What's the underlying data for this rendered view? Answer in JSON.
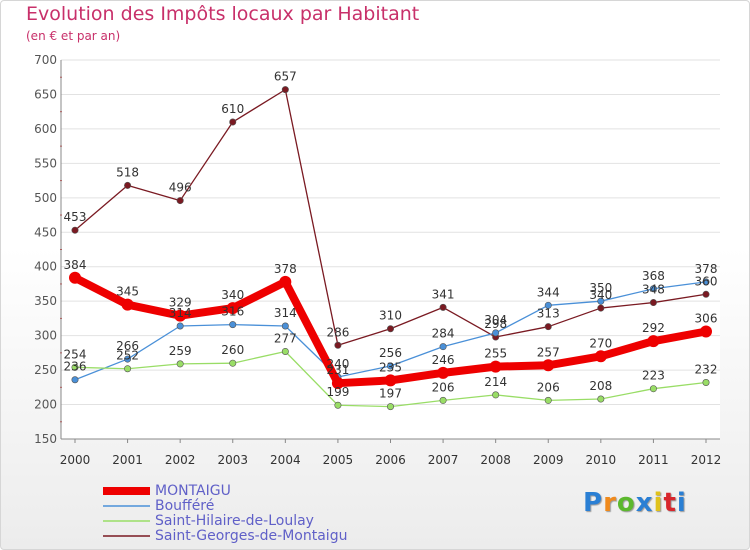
{
  "chart_data": {
    "type": "line",
    "title": "Evolution des Impôts locaux par Habitant",
    "subtitle": "(en € et par an)",
    "xlabel": "",
    "ylabel": "",
    "categories": [
      "2000",
      "2001",
      "2002",
      "2003",
      "2004",
      "2005",
      "2006",
      "2007",
      "2008",
      "2009",
      "2010",
      "2011",
      "2012"
    ],
    "yticks": [
      "150",
      "200",
      "250",
      "300",
      "350",
      "400",
      "450",
      "500",
      "550",
      "600",
      "650",
      "700"
    ],
    "ylim": [
      150,
      700
    ],
    "grid": "horizontal",
    "legend_position": "bottom-left",
    "series": [
      {
        "name": "MONTAIGU",
        "color": "#ee0000",
        "values": [
          384,
          345,
          329,
          340,
          378,
          231,
          235,
          246,
          255,
          257,
          270,
          292,
          306
        ],
        "labels": [
          "384",
          "345",
          "329",
          "340",
          "378",
          "231",
          "235",
          "246",
          "255",
          "257",
          "270",
          "292",
          "306"
        ]
      },
      {
        "name": "Boufféré",
        "color": "#4a90d8",
        "values": [
          236,
          266,
          314,
          316,
          314,
          240,
          256,
          284,
          304,
          344,
          350,
          368,
          378
        ],
        "labels": [
          "236",
          "266",
          "314",
          "316",
          "314",
          "240",
          "256",
          "284",
          "304",
          "344",
          "350",
          "368",
          "378"
        ]
      },
      {
        "name": "Saint-Hilaire-de-Loulay",
        "color": "#99dd66",
        "values": [
          254,
          252,
          259,
          260,
          277,
          199,
          197,
          206,
          214,
          206,
          208,
          223,
          232
        ],
        "labels": [
          "254",
          "252",
          "259",
          "260",
          "277",
          "199",
          "197",
          "206",
          "214",
          "206",
          "208",
          "223",
          "232"
        ]
      },
      {
        "name": "Saint-Georges-de-Montaigu",
        "color": "#7a1a22",
        "values": [
          453,
          518,
          496,
          610,
          657,
          286,
          310,
          341,
          298,
          313,
          340,
          348,
          360
        ],
        "labels": [
          "453",
          "518",
          "496",
          "610",
          "657",
          "286",
          "310",
          "341",
          "298",
          "313",
          "340",
          "348",
          "360"
        ]
      }
    ]
  },
  "legend": {
    "items": [
      {
        "label": "MONTAIGU"
      },
      {
        "label": "Boufféré"
      },
      {
        "label": "Saint-Hilaire-de-Loulay"
      },
      {
        "label": "Saint-Georges-de-Montaigu"
      }
    ]
  },
  "logo": {
    "text": "Proxiti",
    "colors": [
      "#2a7fd4",
      "#f08a1c",
      "#5cb82e",
      "#2a7fd4",
      "#e0c21c",
      "#d8262c",
      "#2a7fd4"
    ]
  }
}
